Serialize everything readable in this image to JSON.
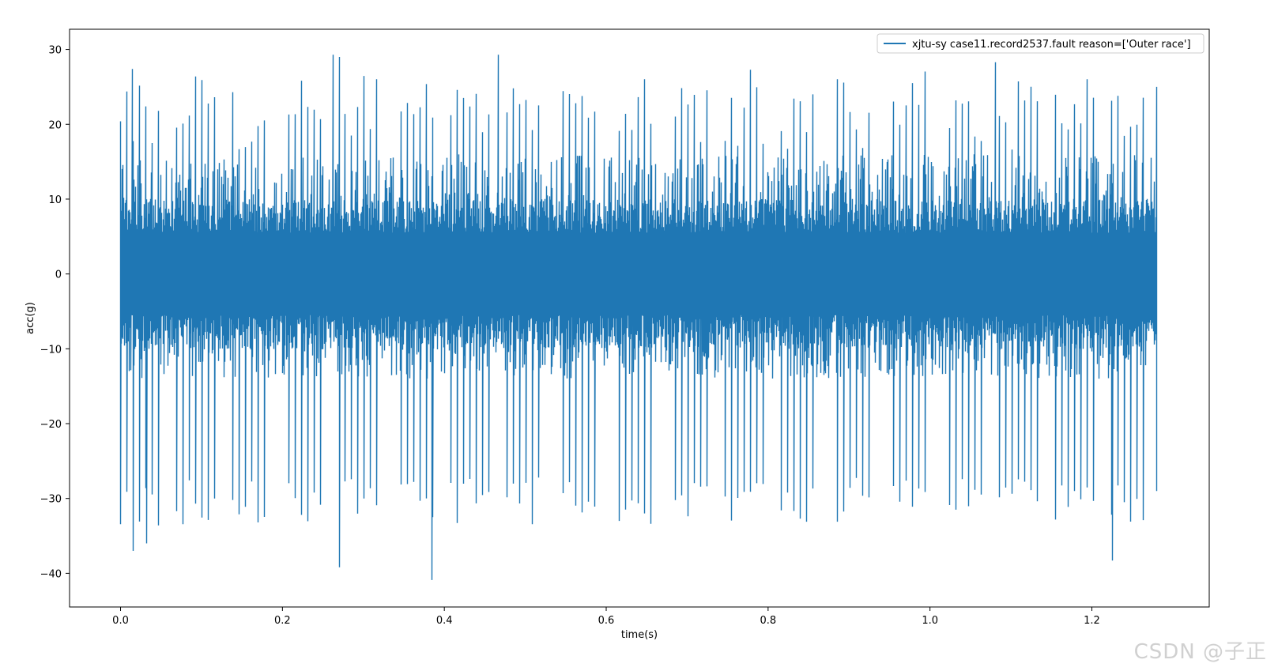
{
  "chart_data": {
    "type": "line",
    "xlabel": "time(s)",
    "ylabel": "acc(g)",
    "xlim": [
      -0.063,
      1.345
    ],
    "ylim": [
      -44.5,
      32.7
    ],
    "xticks": [
      0.0,
      0.2,
      0.4,
      0.6,
      0.8,
      1.0,
      1.2
    ],
    "xtick_labels": [
      "0.0",
      "0.2",
      "0.4",
      "0.6",
      "0.8",
      "1.0",
      "1.2"
    ],
    "yticks": [
      30,
      20,
      10,
      0,
      -10,
      -20,
      -30,
      -40
    ],
    "ytick_labels": [
      "30",
      "20",
      "10",
      "0",
      "−10",
      "−20",
      "−30",
      "−40"
    ],
    "legend_position": "upper right",
    "grid": false,
    "series": [
      {
        "name": "xjtu-sy case11.record2537.fault reason=['Outer race']",
        "color": "#1f77b4",
        "x_range": [
          0.0,
          1.28
        ],
        "samples": 32768,
        "bulk_envelope": {
          "max": 10,
          "min": -10
        },
        "fault_impulses": {
          "period_s": 0.0077,
          "typical_max": 24,
          "typical_min": -32,
          "peaks": [
            {
              "x": 0.0,
              "y": 20.4
            },
            {
              "x": 0.015,
              "y": 27.4
            },
            {
              "x": 0.016,
              "y": -37.0
            },
            {
              "x": 0.032,
              "y": -36.0
            },
            {
              "x": 0.263,
              "y": 29.3
            },
            {
              "x": 0.27,
              "y": 29.0
            },
            {
              "x": 0.27,
              "y": -39.2
            },
            {
              "x": 0.385,
              "y": -40.9
            },
            {
              "x": 0.467,
              "y": 29.3
            },
            {
              "x": 1.081,
              "y": 28.3
            },
            {
              "x": 1.225,
              "y": -38.3
            },
            {
              "x": 1.28,
              "y": 25.0
            },
            {
              "x": 1.28,
              "y": -29.0
            }
          ]
        }
      }
    ]
  },
  "watermark": "CSDN @子正"
}
